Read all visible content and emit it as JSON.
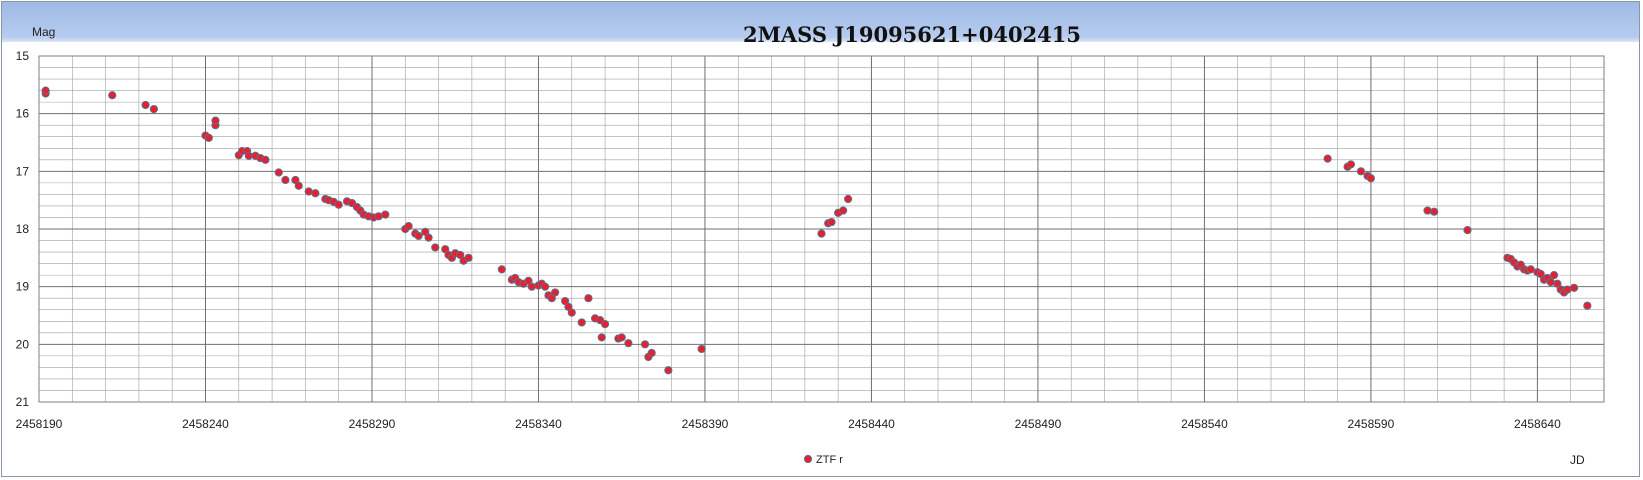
{
  "chart_data": {
    "type": "scatter",
    "title": "2MASS J19095621+0402415",
    "xlabel": "JD",
    "ylabel": "Mag",
    "xlim": [
      2458190,
      2458660
    ],
    "ylim": [
      21,
      15
    ],
    "y_inverted": true,
    "x_ticks": [
      2458190,
      2458240,
      2458290,
      2458340,
      2458390,
      2458440,
      2458490,
      2458540,
      2458590,
      2458640
    ],
    "y_ticks": [
      15,
      16,
      17,
      18,
      19,
      20,
      21
    ],
    "grid": true,
    "legend_position": "bottom-center",
    "colors": {
      "marker_fill": "#e8202a",
      "marker_edge": "#5a6f96",
      "plot_border": "#7f7f7f",
      "grid": "#a0a0a0"
    },
    "series": [
      {
        "name": "ZTF r",
        "points": [
          [
            2458192,
            15.65
          ],
          [
            2458192,
            15.6
          ],
          [
            2458212,
            15.68
          ],
          [
            2458222,
            15.85
          ],
          [
            2458224.5,
            15.92
          ],
          [
            2458240,
            16.38
          ],
          [
            2458241,
            16.42
          ],
          [
            2458243,
            16.2
          ],
          [
            2458243,
            16.12
          ],
          [
            2458250,
            16.72
          ],
          [
            2458251,
            16.65
          ],
          [
            2458252.5,
            16.65
          ],
          [
            2458253,
            16.73
          ],
          [
            2458255,
            16.73
          ],
          [
            2458256.5,
            16.77
          ],
          [
            2458258,
            16.8
          ],
          [
            2458262,
            17.02
          ],
          [
            2458264,
            17.15
          ],
          [
            2458267,
            17.15
          ],
          [
            2458268,
            17.25
          ],
          [
            2458271,
            17.35
          ],
          [
            2458273,
            17.38
          ],
          [
            2458276,
            17.48
          ],
          [
            2458277,
            17.5
          ],
          [
            2458278.5,
            17.53
          ],
          [
            2458280,
            17.58
          ],
          [
            2458282.5,
            17.52
          ],
          [
            2458284,
            17.55
          ],
          [
            2458285.5,
            17.62
          ],
          [
            2458286.5,
            17.68
          ],
          [
            2458287.5,
            17.75
          ],
          [
            2458289,
            17.78
          ],
          [
            2458290.5,
            17.8
          ],
          [
            2458292,
            17.78
          ],
          [
            2458294,
            17.75
          ],
          [
            2458300,
            18.0
          ],
          [
            2458301,
            17.95
          ],
          [
            2458303,
            18.08
          ],
          [
            2458304,
            18.12
          ],
          [
            2458306,
            18.05
          ],
          [
            2458307,
            18.15
          ],
          [
            2458309,
            18.32
          ],
          [
            2458312,
            18.35
          ],
          [
            2458313,
            18.45
          ],
          [
            2458314,
            18.5
          ],
          [
            2458315,
            18.42
          ],
          [
            2458316.5,
            18.45
          ],
          [
            2458317.5,
            18.55
          ],
          [
            2458319,
            18.5
          ],
          [
            2458329,
            18.7
          ],
          [
            2458332,
            18.88
          ],
          [
            2458333,
            18.85
          ],
          [
            2458334,
            18.92
          ],
          [
            2458335.5,
            18.95
          ],
          [
            2458337,
            18.9
          ],
          [
            2458338,
            19.0
          ],
          [
            2458340,
            18.98
          ],
          [
            2458341,
            18.95
          ],
          [
            2458342,
            19.0
          ],
          [
            2458343,
            19.15
          ],
          [
            2458344,
            19.2
          ],
          [
            2458345,
            19.1
          ],
          [
            2458348,
            19.25
          ],
          [
            2458349,
            19.35
          ],
          [
            2458350,
            19.45
          ],
          [
            2458353,
            19.62
          ],
          [
            2458355,
            19.2
          ],
          [
            2458357,
            19.55
          ],
          [
            2458358.5,
            19.58
          ],
          [
            2458359,
            19.88
          ],
          [
            2458360,
            19.65
          ],
          [
            2458364,
            19.9
          ],
          [
            2458365,
            19.88
          ],
          [
            2458367,
            19.98
          ],
          [
            2458372,
            20.0
          ],
          [
            2458373,
            20.22
          ],
          [
            2458374,
            20.15
          ],
          [
            2458379,
            20.45
          ],
          [
            2458389,
            20.08
          ],
          [
            2458425,
            18.08
          ],
          [
            2458427,
            17.9
          ],
          [
            2458428,
            17.88
          ],
          [
            2458430,
            17.72
          ],
          [
            2458431.5,
            17.68
          ],
          [
            2458433,
            17.48
          ],
          [
            2458577,
            16.78
          ],
          [
            2458583,
            16.92
          ],
          [
            2458584,
            16.88
          ],
          [
            2458587,
            17.0
          ],
          [
            2458589,
            17.08
          ],
          [
            2458590,
            17.12
          ],
          [
            2458607,
            17.68
          ],
          [
            2458609,
            17.7
          ],
          [
            2458619,
            18.02
          ],
          [
            2458631,
            18.5
          ],
          [
            2458632,
            18.52
          ],
          [
            2458633,
            18.58
          ],
          [
            2458634,
            18.65
          ],
          [
            2458635,
            18.62
          ],
          [
            2458636,
            18.7
          ],
          [
            2458637,
            18.72
          ],
          [
            2458638,
            18.7
          ],
          [
            2458640,
            18.75
          ],
          [
            2458641,
            18.78
          ],
          [
            2458642,
            18.88
          ],
          [
            2458643,
            18.85
          ],
          [
            2458644,
            18.92
          ],
          [
            2458645,
            18.8
          ],
          [
            2458646,
            18.95
          ],
          [
            2458647,
            19.05
          ],
          [
            2458648,
            19.1
          ],
          [
            2458649,
            19.05
          ],
          [
            2458651,
            19.02
          ],
          [
            2458655,
            19.33
          ]
        ]
      }
    ]
  }
}
